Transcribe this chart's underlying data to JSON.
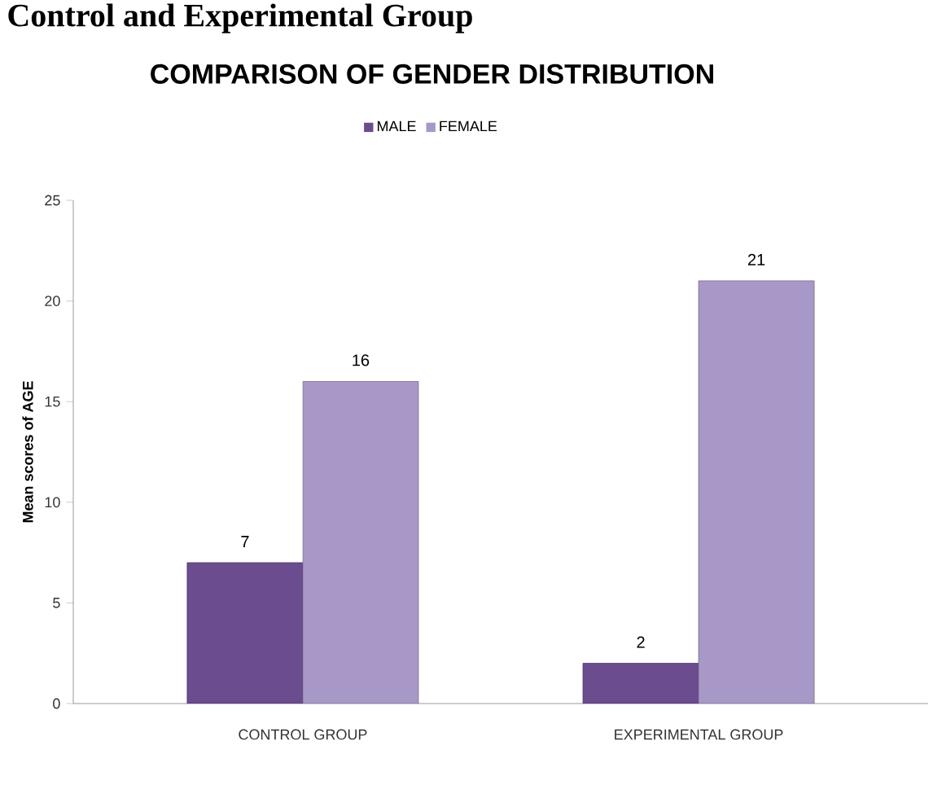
{
  "chart_data": {
    "type": "bar",
    "title": "COMPARISON OF GENDER DISTRIBUTION",
    "ylabel": "Mean scores of AGE",
    "annotations": [
      "Control and Experimental Group"
    ],
    "categories": [
      "CONTROL GROUP",
      "EXPERIMENTAL GROUP"
    ],
    "series": [
      {
        "name": "MALE",
        "color": "#6b4c8f",
        "values": [
          7,
          2
        ]
      },
      {
        "name": "FEMALE",
        "color": "#a898c8",
        "values": [
          16,
          21
        ]
      }
    ],
    "ylim": [
      0,
      25
    ],
    "yticks": [
      0,
      5,
      10,
      15,
      20,
      25
    ],
    "data_labels": true,
    "legend": "top",
    "grid": false
  }
}
